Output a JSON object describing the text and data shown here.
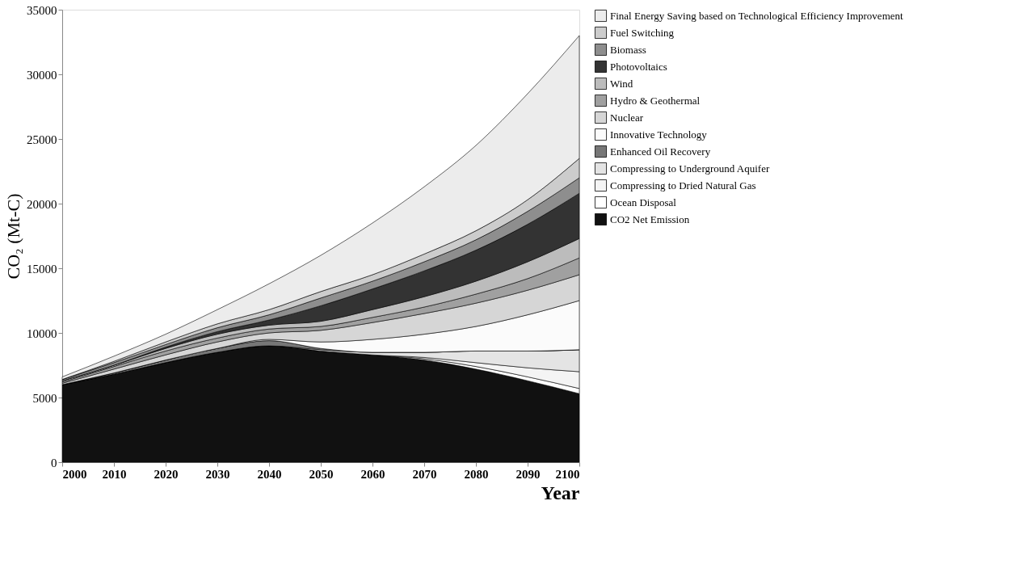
{
  "chart_data": {
    "type": "area",
    "stacked": true,
    "xlabel": "Year",
    "ylabel": "CO₂ (Mt-C)",
    "x": [
      2000,
      2010,
      2020,
      2030,
      2040,
      2050,
      2060,
      2070,
      2080,
      2090,
      2100
    ],
    "xlim": [
      2000,
      2100
    ],
    "xticks": [
      2000,
      2010,
      2020,
      2030,
      2040,
      2050,
      2060,
      2070,
      2080,
      2090,
      2100
    ],
    "ylim": [
      0,
      35000
    ],
    "yticks": [
      0,
      5000,
      10000,
      15000,
      20000,
      25000,
      30000,
      35000
    ],
    "grid": false,
    "legend": "right",
    "series": [
      {
        "name": "CO2 Net Emission",
        "color": "#111111",
        "values": [
          6000,
          6800,
          7700,
          8500,
          9000,
          8600,
          8300,
          7900,
          7200,
          6300,
          5300
        ]
      },
      {
        "name": "Ocean Disposal",
        "color": "#ffffff",
        "values": [
          0,
          0,
          0,
          0,
          0,
          0,
          0,
          100,
          200,
          300,
          400
        ]
      },
      {
        "name": "Compressing to Dried Natural Gas",
        "color": "#f4f4f4",
        "values": [
          0,
          0,
          0,
          0,
          0,
          0,
          0,
          100,
          300,
          700,
          1300
        ]
      },
      {
        "name": "Compressing to Underground Aquifer",
        "color": "#e4e4e4",
        "values": [
          0,
          0,
          0,
          0,
          0,
          100,
          200,
          400,
          900,
          1300,
          1700
        ]
      },
      {
        "name": "Enhanced Oil Recovery",
        "color": "#777777",
        "values": [
          0,
          100,
          200,
          300,
          400,
          100,
          0,
          0,
          0,
          0,
          0
        ]
      },
      {
        "name": "Innovative Technology",
        "color": "#fbfbfb",
        "values": [
          0,
          0,
          0,
          0,
          100,
          500,
          1000,
          1400,
          1900,
          2800,
          3800
        ]
      },
      {
        "name": "Nuclear",
        "color": "#d6d6d6",
        "values": [
          100,
          300,
          400,
          500,
          500,
          900,
          1300,
          1600,
          1800,
          1900,
          2000
        ]
      },
      {
        "name": "Hydro & Geothermal",
        "color": "#a0a0a0",
        "values": [
          100,
          200,
          300,
          300,
          300,
          300,
          400,
          500,
          700,
          900,
          1300
        ]
      },
      {
        "name": "Wind",
        "color": "#bcbcbc",
        "values": [
          100,
          100,
          200,
          300,
          300,
          400,
          600,
          800,
          1000,
          1300,
          1500
        ]
      },
      {
        "name": "Photovoltaics",
        "color": "#333333",
        "values": [
          0,
          0,
          100,
          200,
          400,
          1200,
          1600,
          2000,
          2400,
          2900,
          3500
        ]
      },
      {
        "name": "Biomass",
        "color": "#8e8e8e",
        "values": [
          100,
          200,
          200,
          300,
          400,
          600,
          600,
          700,
          800,
          1000,
          1200
        ]
      },
      {
        "name": "Fuel Switching",
        "color": "#cccccc",
        "values": [
          0,
          100,
          200,
          300,
          400,
          500,
          500,
          600,
          700,
          900,
          1500
        ]
      },
      {
        "name": "Final Energy Saving based on Technological Efficiency Improvement",
        "color": "#ececec",
        "values": [
          200,
          400,
          600,
          1100,
          2000,
          2800,
          4000,
          5200,
          6600,
          8200,
          9500
        ]
      }
    ]
  }
}
